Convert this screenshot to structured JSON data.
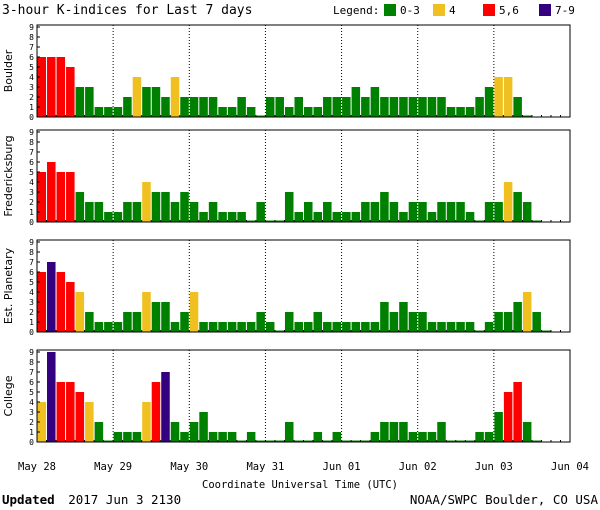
{
  "chart_data": {
    "type": "bar",
    "title": "3-hour K-indices for Last 7 days",
    "legend": {
      "label": "Legend:",
      "entries": [
        {
          "label": "0-3",
          "color": "#008000"
        },
        {
          "label": "4",
          "color": "#f0c020"
        },
        {
          "label": "5,6",
          "color": "#ff0000"
        },
        {
          "label": "7-9",
          "color": "#330080"
        }
      ]
    },
    "xlabel": "Coordinate Universal Time (UTC)",
    "date_labels": [
      "May 28",
      "May 29",
      "May 30",
      "May 31",
      "Jun 01",
      "Jun 02",
      "Jun 03",
      "Jun 04"
    ],
    "ylim": [
      0,
      9
    ],
    "y_ticks": [
      "0",
      "1",
      "2",
      "3",
      "4",
      "5",
      "6",
      "7",
      "8",
      "9"
    ],
    "panels": [
      {
        "name": "Boulder",
        "values": [
          6,
          6,
          6,
          5,
          3,
          3,
          1,
          1,
          1,
          2,
          4,
          3,
          3,
          2,
          4,
          2,
          2,
          2,
          2,
          1,
          1,
          2,
          1,
          0,
          2,
          2,
          1,
          2,
          1,
          1,
          2,
          2,
          2,
          3,
          2,
          3,
          2,
          2,
          2,
          2,
          2,
          2,
          2,
          1,
          1,
          1,
          2,
          3,
          4,
          4,
          2,
          0
        ]
      },
      {
        "name": "Fredericksburg",
        "values": [
          5,
          6,
          5,
          5,
          3,
          2,
          2,
          1,
          1,
          2,
          2,
          4,
          3,
          3,
          2,
          3,
          2,
          1,
          2,
          1,
          1,
          1,
          0,
          2,
          0,
          0,
          3,
          1,
          2,
          1,
          2,
          1,
          1,
          1,
          2,
          2,
          3,
          2,
          1,
          2,
          2,
          1,
          2,
          2,
          2,
          1,
          0,
          2,
          2,
          4,
          3,
          2,
          0
        ]
      },
      {
        "name": "Est. Planetary",
        "values": [
          6,
          7,
          6,
          5,
          4,
          2,
          1,
          1,
          1,
          2,
          2,
          4,
          3,
          3,
          1,
          2,
          4,
          1,
          1,
          1,
          1,
          1,
          1,
          2,
          1,
          0,
          2,
          1,
          1,
          2,
          1,
          1,
          1,
          1,
          1,
          1,
          3,
          2,
          3,
          2,
          2,
          1,
          1,
          1,
          1,
          1,
          0,
          1,
          2,
          2,
          3,
          4,
          2,
          0
        ]
      },
      {
        "name": "College",
        "values": [
          4,
          9,
          6,
          6,
          5,
          4,
          2,
          0,
          1,
          1,
          1,
          4,
          6,
          7,
          2,
          1,
          2,
          3,
          1,
          1,
          1,
          0,
          1,
          0,
          0,
          0,
          2,
          0,
          0,
          1,
          0,
          1,
          0,
          0,
          0,
          1,
          2,
          2,
          2,
          1,
          1,
          1,
          2,
          0,
          0,
          0,
          1,
          1,
          3,
          5,
          6,
          2,
          0
        ]
      }
    ]
  },
  "footer": {
    "updated_label": "Updated",
    "updated_time": "2017 Jun  3 2130",
    "source": "NOAA/SWPC Boulder, CO USA"
  }
}
